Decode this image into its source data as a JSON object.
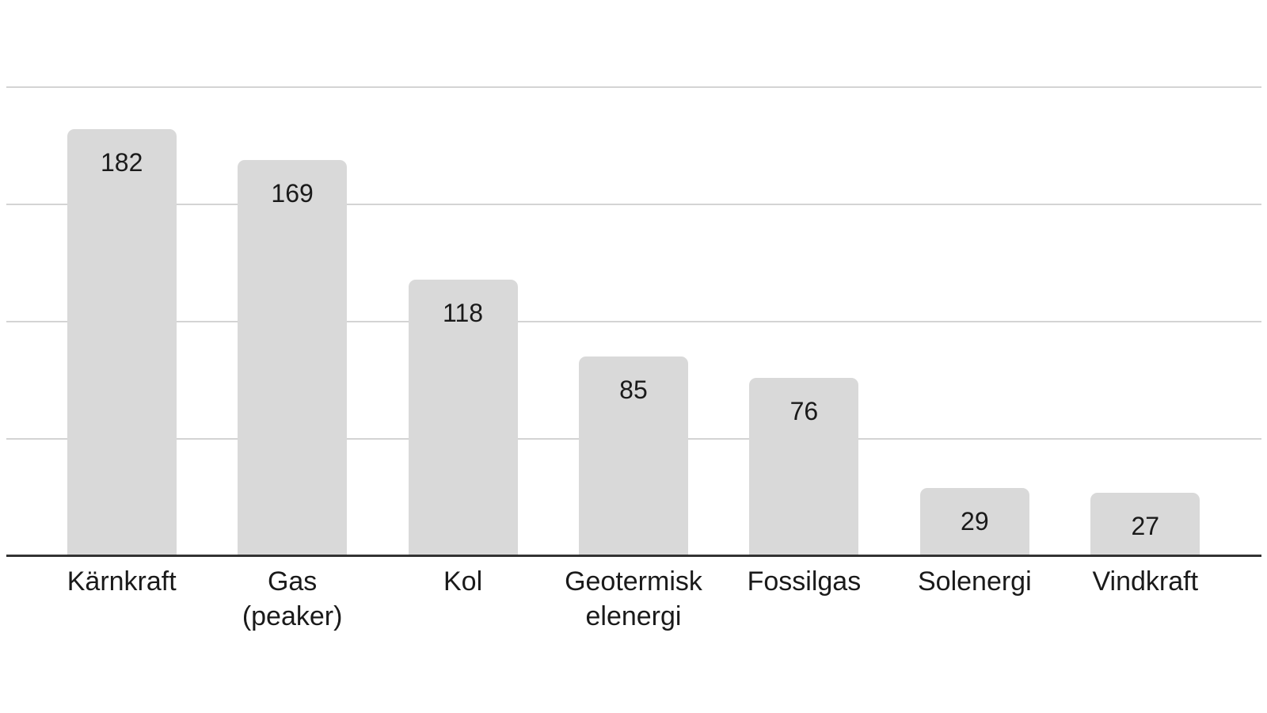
{
  "chart_data": {
    "type": "bar",
    "title": "",
    "xlabel": "",
    "ylabel": "",
    "categories": [
      "Kärnkraft",
      "Gas (peaker)",
      "Kol",
      "Geotermisk elenergi",
      "Fossilgas",
      "Solenergi",
      "Vindkraft"
    ],
    "category_lines": [
      [
        "Kärnkraft"
      ],
      [
        "Gas",
        "(peaker)"
      ],
      [
        "Kol"
      ],
      [
        "Geotermisk",
        "elenergi"
      ],
      [
        "Fossilgas"
      ],
      [
        "Solenergi"
      ],
      [
        "Vindkraft"
      ]
    ],
    "values": [
      182,
      169,
      118,
      85,
      76,
      29,
      27
    ],
    "value_labels": [
      "182",
      "169",
      "118",
      "85",
      "76",
      "29",
      "27"
    ],
    "ylim": [
      0,
      200
    ],
    "gridline_values": [
      50,
      100,
      150,
      200
    ],
    "grid": true,
    "legend": false,
    "colors": {
      "bar": "#d9d9d9",
      "gridline": "#d4d4d4",
      "axis": "#333333",
      "text": "#1a1a1a",
      "background": "#ffffff"
    }
  }
}
